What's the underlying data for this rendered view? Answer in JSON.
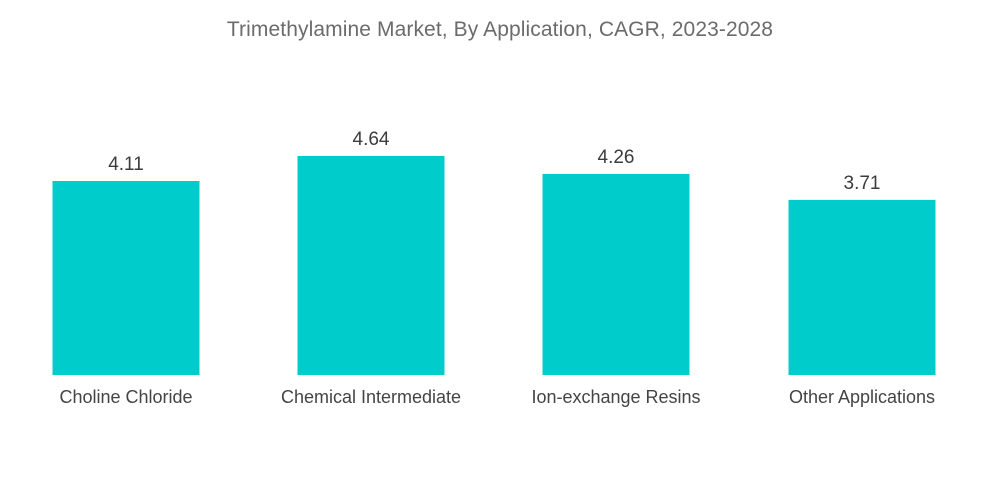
{
  "chart_data": {
    "type": "bar",
    "title": "Trimethylamine Market, By Application, CAGR, 2023-2028",
    "categories": [
      "Choline Chloride",
      "Chemical Intermediate",
      "Ion-exchange Resins",
      "Other Applications"
    ],
    "values": [
      4.11,
      4.64,
      4.26,
      3.71
    ],
    "value_labels": [
      "4.11",
      "4.64",
      "4.26",
      "3.71"
    ],
    "xlabel": "",
    "ylabel": "",
    "ylim": [
      0,
      4.64
    ],
    "grid": false,
    "legend": "none",
    "bar_color": "#00CCCC"
  }
}
